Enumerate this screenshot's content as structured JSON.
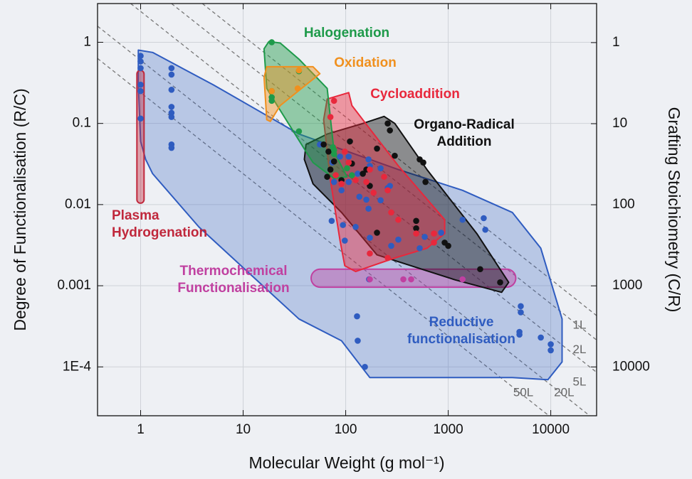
{
  "chart_data": {
    "type": "scatter",
    "x_label": "Molecular Weight (g mol⁻¹)",
    "y_label": "Degree of Functionalisation (R/C)",
    "y2_label": "Grafting Stoichiometry (C/R)",
    "xscale": "log",
    "yscale": "log",
    "y2scale": "log",
    "grid": true,
    "xlim": [
      0.38,
      28000
    ],
    "ylim": [
      2.5e-05,
      3
    ],
    "y2lim": [
      40000,
      0.33
    ],
    "xticks": [
      1,
      10,
      100,
      1000,
      10000
    ],
    "yticks": [
      1,
      0.1,
      0.01,
      0.001,
      {
        "value": 0.0001,
        "label": "1E-4"
      }
    ],
    "y2ticks": [
      1,
      10,
      100,
      1000,
      10000
    ],
    "guides": [
      {
        "label": "1L",
        "value": 12
      },
      {
        "label": "2L",
        "value": 6
      },
      {
        "label": "5L",
        "value": 2.4
      },
      {
        "label": "20L",
        "value": 0.6
      },
      {
        "label": "50L",
        "value": 0.24
      }
    ],
    "series": [
      {
        "name": "Reductive functionalisation",
        "color": "#2f5cc0",
        "region": {
          "x": [
            0.95,
            1.31,
            5.1,
            35,
            326,
            1380,
            4220,
            8000,
            12900,
            12900,
            9380,
            4220,
            172,
            91,
            35,
            3.7,
            1.31,
            1.12,
            1,
            0.95
          ],
          "y": [
            0.8,
            0.75,
            0.3,
            0.074,
            0.027,
            0.015,
            0.008,
            0.0029,
            0.00039,
            0.000115,
            6.95e-05,
            7.38e-05,
            7.38e-05,
            0.00021,
            0.00039,
            0.0053,
            0.024,
            0.036,
            0.06,
            0.3
          ]
        },
        "x": [
          1,
          1,
          1,
          1,
          1,
          1,
          2,
          2,
          2,
          2,
          2,
          2,
          2,
          2,
          56,
          74,
          88,
          107,
          131,
          167,
          172,
          219,
          270,
          77,
          107,
          91,
          136,
          159,
          167,
          219,
          257,
          73,
          94,
          125,
          98,
          172,
          278,
          527,
          853,
          1380,
          2220,
          2300,
          5100,
          5100,
          4950,
          4950,
          8000,
          10000,
          10000,
          129,
          131,
          154,
          169,
          326,
          590,
          1380
        ],
        "values": [
          0.68,
          0.58,
          0.48,
          0.3,
          0.25,
          0.115,
          0.48,
          0.4,
          0.26,
          0.16,
          0.135,
          0.12,
          0.055,
          0.05,
          0.055,
          0.033,
          0.039,
          0.039,
          0.024,
          0.036,
          0.03,
          0.028,
          0.017,
          0.019,
          0.019,
          0.015,
          0.0125,
          0.0115,
          0.0089,
          0.0113,
          0.016,
          0.0063,
          0.0056,
          0.0053,
          0.0036,
          0.0039,
          0.0031,
          0.0029,
          0.0045,
          0.0065,
          0.0068,
          0.0049,
          0.00056,
          0.00047,
          0.00027,
          0.00025,
          0.00023,
          0.00019,
          0.00016,
          0.00042,
          0.00021,
          0.0001,
          0.0012,
          0.0037,
          0.004,
          0.0012
        ]
      },
      {
        "name": "Plasma Hydrogenation",
        "color": "#c0283c",
        "region": {
          "shape": "capsule",
          "x": [
            0.92,
            1.08
          ],
          "y": [
            0.0104,
            0.45
          ]
        }
      },
      {
        "name": "Thermochemical Functionalisation",
        "color": "#c040a0",
        "region": {
          "shape": "capsule",
          "x": [
            46,
            4560
          ],
          "y": [
            0.00096,
            0.0016
          ]
        },
        "x": [
          172,
          365,
          435,
          1380
        ],
        "values": [
          0.0012,
          0.0012,
          0.0012,
          0.0012
        ]
      },
      {
        "name": "Organo-Radical Addition",
        "color": "#111111",
        "region": {
          "x": [
            41,
            66,
            147,
            237,
            301,
            620,
            1900,
            3890,
            3320,
            1170,
            202,
            91,
            48,
            39.5
          ],
          "y": [
            0.055,
            0.074,
            0.1,
            0.122,
            0.1,
            0.027,
            0.0044,
            0.0011,
            0.00083,
            0.00118,
            0.0024,
            0.008,
            0.018,
            0.036
          ]
        },
        "x": [
          257,
          270,
          61,
          68,
          110,
          77,
          71,
          115,
          159,
          202,
          301,
          527,
          571,
          600,
          487,
          487,
          202,
          923,
          1000,
          2050,
          3210,
          66,
          91,
          147,
          172
        ],
        "values": [
          0.1,
          0.082,
          0.055,
          0.045,
          0.06,
          0.034,
          0.027,
          0.032,
          0.027,
          0.049,
          0.04,
          0.036,
          0.033,
          0.019,
          0.0063,
          0.0051,
          0.0045,
          0.0034,
          0.0031,
          0.0016,
          0.0011,
          0.022,
          0.02,
          0.024,
          0.017
        ]
      },
      {
        "name": "Cycloaddition",
        "color": "#e8283c",
        "region": {
          "x": [
            66,
            107,
            115,
            326,
            923,
            923,
            620,
            301,
            125,
            98,
            88,
            71,
            61
          ],
          "y": [
            0.2,
            0.24,
            0.166,
            0.03,
            0.0065,
            0.0044,
            0.0029,
            0.0022,
            0.0015,
            0.00176,
            0.0036,
            0.02,
            0.111
          ]
        },
        "x": [
          77,
          71,
          77,
          98,
          107,
          125,
          172,
          237,
          257,
          187,
          278,
          326,
          487,
          726,
          726,
          172,
          257,
          80,
          91,
          159
        ],
        "values": [
          0.19,
          0.12,
          0.049,
          0.045,
          0.033,
          0.02,
          0.027,
          0.022,
          0.015,
          0.014,
          0.008,
          0.0065,
          0.0044,
          0.0044,
          0.0034,
          0.0025,
          0.0022,
          0.023,
          0.018,
          0.019
        ]
      },
      {
        "name": "Halogenation",
        "color": "#1e9a4a",
        "region": {
          "x": [
            17.8,
            23,
            35,
            66,
            77,
            103,
            77,
            48,
            41,
            21.5,
            17,
            16
          ],
          "y": [
            1.02,
            0.98,
            0.62,
            0.27,
            0.045,
            0.022,
            0.021,
            0.033,
            0.045,
            0.166,
            0.27,
            0.83
          ]
        },
        "x": [
          19,
          19,
          19,
          19,
          35,
          35,
          75,
          77,
          77,
          103,
          115
        ],
        "values": [
          1.0,
          0.25,
          0.21,
          0.19,
          0.44,
          0.08,
          0.051,
          0.047,
          0.042,
          0.028,
          0.023
        ]
      },
      {
        "name": "Oxidation",
        "color": "#f0901e",
        "region": {
          "x": [
            17,
            48,
            56,
            23,
            18.4,
            17,
            16
          ],
          "y": [
            0.5,
            0.5,
            0.41,
            0.166,
            0.106,
            0.111,
            0.37
          ]
        },
        "x": [
          19,
          35,
          34
        ],
        "values": [
          0.25,
          0.45,
          0.27
        ]
      }
    ]
  }
}
